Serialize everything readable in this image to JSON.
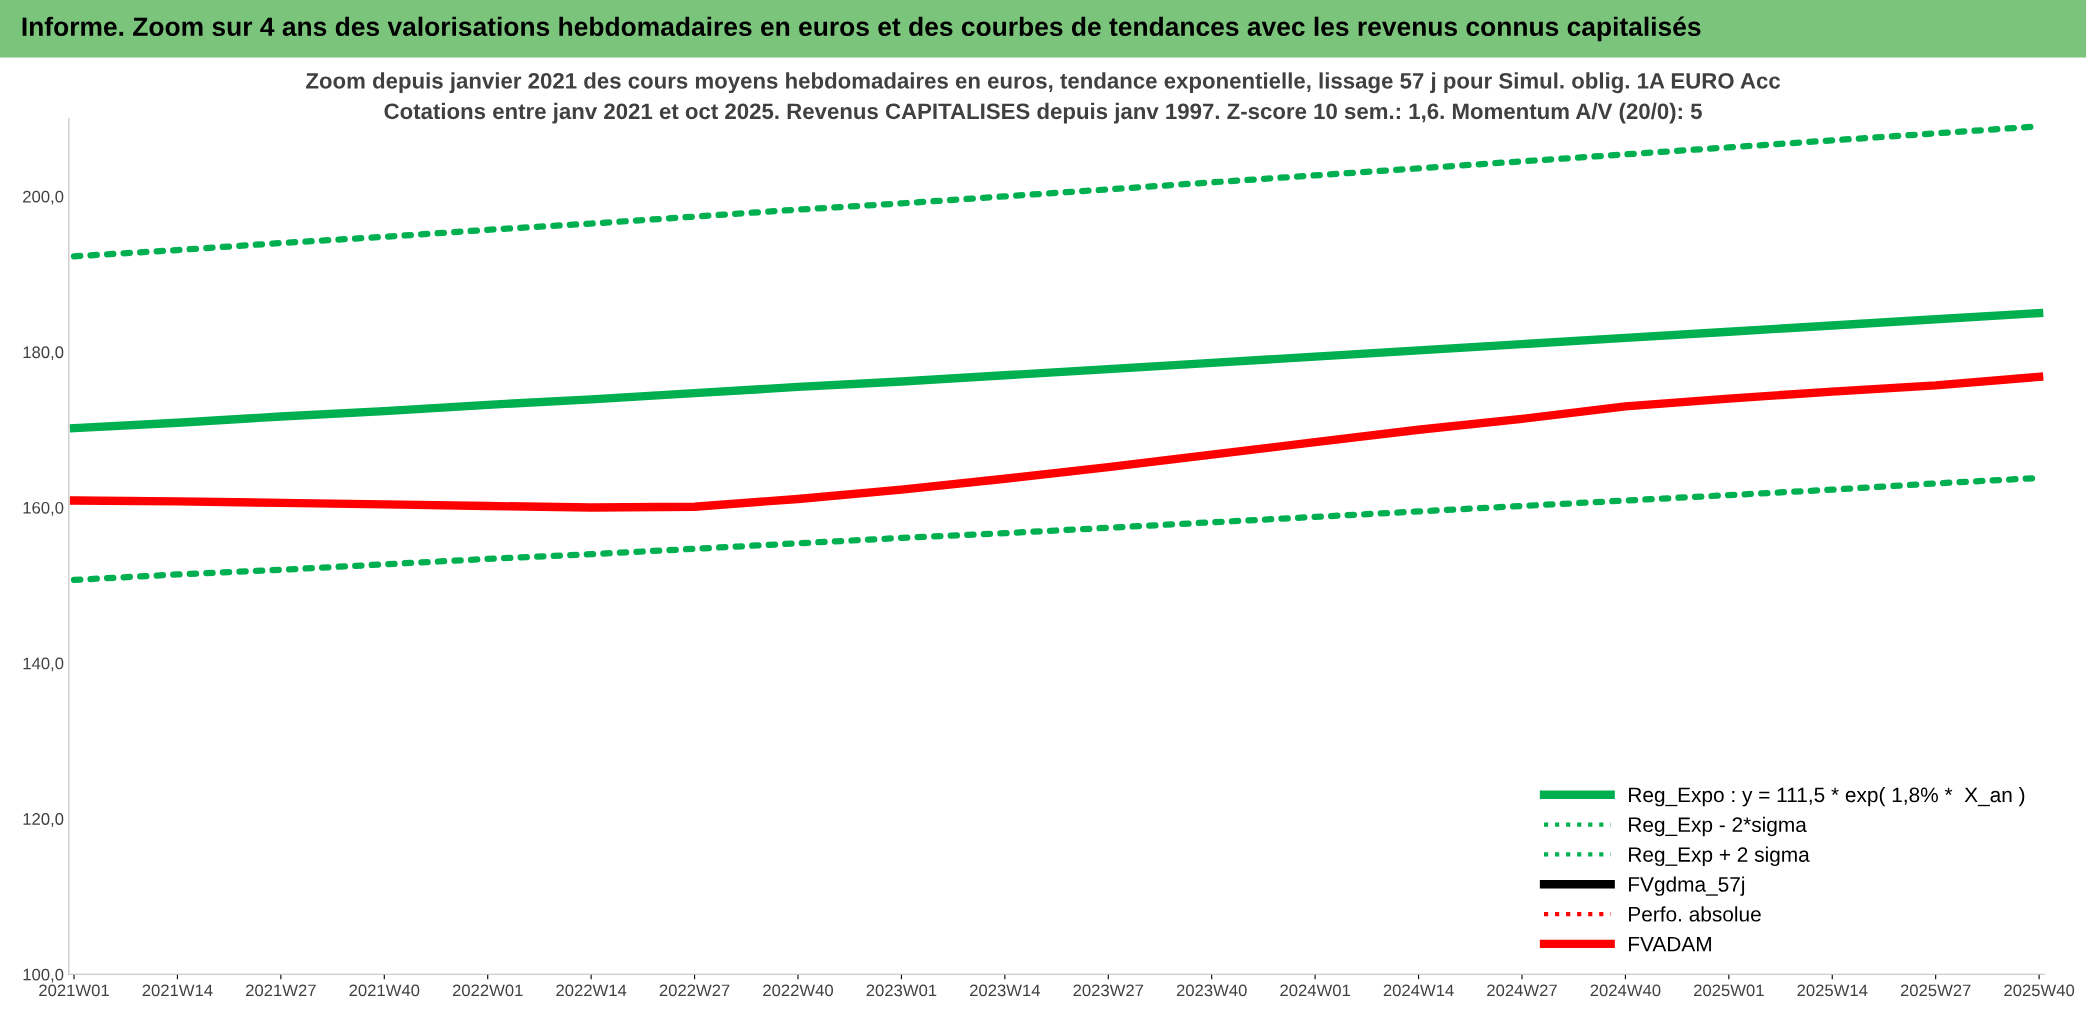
{
  "chart_data": {
    "type": "line",
    "title": "Informe. Zoom sur 4 ans des valorisations hebdomadaires en euros et des courbes de tendances avec les revenus connus capitalisés",
    "subtitle": "Zoom depuis janvier 2021 des cours moyens hebdomadaires en euros, tendance exponentielle, lissage 57 j pour Simul. oblig. 1A EURO Acc\nCotations entre janv 2021 et oct 2025. Revenus CAPITALISES depuis janv 1997. Z-score 10 sem.: 1,6. Momentum A/V (20/0): 5",
    "categories": [
      "2021W01",
      "2021W14",
      "2021W27",
      "2021W40",
      "2022W01",
      "2022W14",
      "2022W27",
      "2022W40",
      "2023W01",
      "2023W14",
      "2023W27",
      "2023W40",
      "2024W01",
      "2024W14",
      "2024W27",
      "2024W40",
      "2025W01",
      "2025W14",
      "2025W27",
      "2025W40"
    ],
    "series": [
      {
        "name": "Reg_Expo : y = 111,5 * exp( 1,8% *  X_an )",
        "color": "#00b050",
        "line_style": "solid",
        "values": [
          170.2,
          170.9,
          171.7,
          172.4,
          173.2,
          173.9,
          174.7,
          175.5,
          176.2,
          177.0,
          177.8,
          178.6,
          179.4,
          180.2,
          181.0,
          181.8,
          182.6,
          183.4,
          184.2,
          185.0
        ]
      },
      {
        "name": "Reg_Exp - 2*sigma",
        "color": "#00b050",
        "line_style": "dotted",
        "values": [
          150.7,
          151.4,
          152.0,
          152.7,
          153.4,
          154.0,
          154.7,
          155.4,
          156.1,
          156.7,
          157.4,
          158.1,
          158.8,
          159.5,
          160.2,
          160.9,
          161.6,
          162.3,
          163.1,
          163.8
        ]
      },
      {
        "name": "Reg_Exp + 2 sigma",
        "color": "#00b050",
        "line_style": "dotted",
        "values": [
          192.3,
          193.1,
          194.0,
          194.8,
          195.7,
          196.5,
          197.4,
          198.3,
          199.1,
          200.0,
          200.9,
          201.8,
          202.7,
          203.6,
          204.5,
          205.4,
          206.3,
          207.2,
          208.1,
          209.0
        ]
      },
      {
        "name": "FVgdma_57j",
        "color": "#000000",
        "line_style": "solid",
        "values": [
          null,
          null,
          null,
          null,
          null,
          null,
          null,
          null,
          null,
          null,
          null,
          null,
          null,
          null,
          null,
          null,
          null,
          null,
          null,
          null
        ]
      },
      {
        "name": "Perfo. absolue",
        "color": "#ff0000",
        "line_style": "dotted",
        "values": [
          null,
          null,
          null,
          null,
          null,
          null,
          null,
          null,
          null,
          null,
          null,
          null,
          null,
          null,
          null,
          null,
          null,
          null,
          null,
          null
        ]
      },
      {
        "name": "FVADAM",
        "color": "#ff0000",
        "line_style": "solid",
        "values": [
          160.9,
          160.8,
          160.6,
          160.4,
          160.2,
          160.0,
          160.1,
          161.1,
          162.3,
          163.7,
          165.2,
          166.8,
          168.4,
          170.0,
          171.4,
          173.0,
          174.0,
          174.9,
          175.7,
          176.8
        ]
      }
    ],
    "ylim": [
      100,
      210
    ],
    "yticks": [
      {
        "value": 100,
        "label": "100,0"
      },
      {
        "value": 120,
        "label": "120,0"
      },
      {
        "value": 140,
        "label": "140,0"
      },
      {
        "value": 160,
        "label": "160,0"
      },
      {
        "value": 180,
        "label": "180,0"
      },
      {
        "value": 200,
        "label": "200,0"
      }
    ],
    "legend": "bottom right"
  }
}
